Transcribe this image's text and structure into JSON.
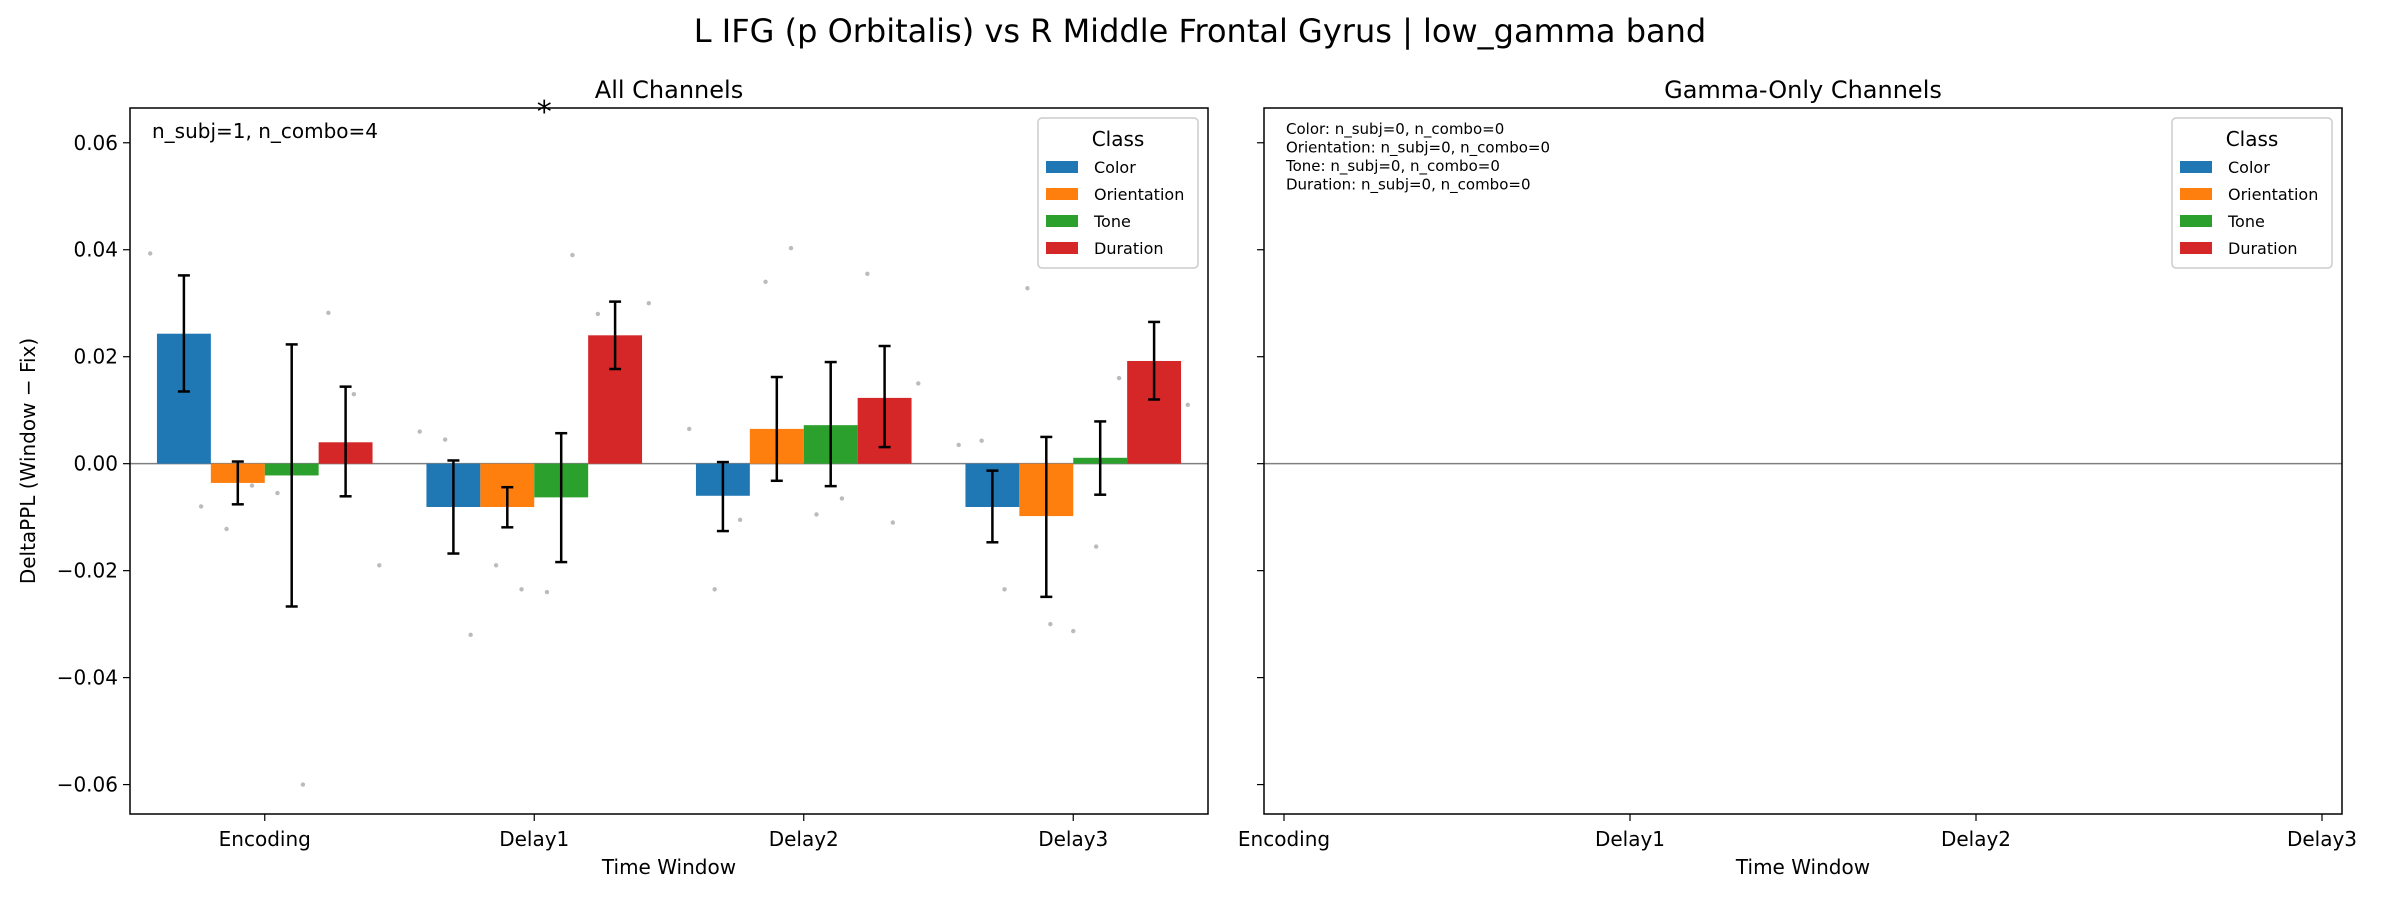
{
  "suptitle": "L IFG (p Orbitalis) vs R Middle Frontal Gyrus  |  low_gamma band",
  "legend_title": "Class",
  "classes": [
    {
      "name": "Color",
      "color": "#1f77b4"
    },
    {
      "name": "Orientation",
      "color": "#ff7f0e"
    },
    {
      "name": "Tone",
      "color": "#2ca02c"
    },
    {
      "name": "Duration",
      "color": "#d62728"
    }
  ],
  "chart_data": [
    {
      "type": "bar",
      "title": "All Channels",
      "xlabel": "Time Window",
      "ylabel": "DeltaPPL (Window − Fix)",
      "categories": [
        "Encoding",
        "Delay1",
        "Delay2",
        "Delay3"
      ],
      "ylim": [
        -0.0655,
        0.0665
      ],
      "yticks": [
        0.06,
        0.04,
        0.02,
        0.0,
        -0.02,
        -0.04,
        -0.06
      ],
      "ytick_labels": [
        "0.06",
        "0.04",
        "0.02",
        "0.00",
        "−0.02",
        "−0.04",
        "−0.06"
      ],
      "annotation": "n_subj=1, n_combo=4",
      "significance_marker": {
        "text": "*",
        "category": "Delay1",
        "color": "#ff0000"
      },
      "series": [
        {
          "name": "Color",
          "values": [
            0.0243,
            -0.0081,
            -0.006,
            -0.0081
          ],
          "err_low": [
            0.0135,
            -0.0168,
            -0.0126,
            -0.0147
          ],
          "err_high": [
            0.0352,
            0.0006,
            0.0003,
            -0.0013
          ]
        },
        {
          "name": "Orientation",
          "values": [
            -0.0036,
            -0.0081,
            0.0065,
            -0.0098
          ],
          "err_low": [
            -0.0076,
            -0.0119,
            -0.0032,
            -0.0249
          ],
          "err_high": [
            0.0004,
            -0.0044,
            0.0162,
            0.005
          ]
        },
        {
          "name": "Tone",
          "values": [
            -0.0022,
            -0.0063,
            0.0072,
            0.0011
          ],
          "err_low": [
            -0.0267,
            -0.0184,
            -0.0042,
            -0.0058
          ],
          "err_high": [
            0.0223,
            0.0057,
            0.019,
            0.0079
          ]
        },
        {
          "name": "Duration",
          "values": [
            0.004,
            0.024,
            0.0123,
            0.0192
          ],
          "err_low": [
            -0.0061,
            0.0177,
            0.0031,
            0.012
          ],
          "err_high": [
            0.0144,
            0.0303,
            0.022,
            0.0265
          ]
        }
      ],
      "points": [
        {
          "category": "Encoding",
          "values": [
            0.0393,
            0.006,
            -0.008,
            -0.0122,
            -0.0041,
            -0.0055,
            -0.06,
            0.0282,
            0.013,
            -0.019
          ]
        },
        {
          "category": "Delay1",
          "values": [
            0.006,
            0.0045,
            -0.032,
            -0.019,
            -0.0235,
            -0.024,
            0.039,
            0.028,
            0.0115,
            0.03
          ]
        },
        {
          "category": "Delay2",
          "values": [
            0.0065,
            -0.0235,
            -0.0105,
            0.034,
            0.0403,
            -0.0095,
            -0.0065,
            0.0355,
            -0.011,
            0.015
          ]
        },
        {
          "category": "Delay3",
          "values": [
            0.0035,
            0.0043,
            -0.0235,
            0.0328,
            -0.03,
            -0.0313,
            -0.0155,
            0.016,
            0.008,
            0.0055,
            0.011
          ]
        }
      ]
    },
    {
      "type": "bar",
      "title": "Gamma-Only Channels",
      "xlabel": "Time Window",
      "ylabel": "",
      "categories": [
        "Encoding",
        "Delay1",
        "Delay2",
        "Delay3"
      ],
      "ylim": [
        -0.0655,
        0.0665
      ],
      "annotation_lines": [
        "Color: n_subj=0, n_combo=0",
        "Orientation: n_subj=0, n_combo=0",
        "Tone: n_subj=0, n_combo=0",
        "Duration: n_subj=0, n_combo=0"
      ],
      "series": []
    }
  ]
}
